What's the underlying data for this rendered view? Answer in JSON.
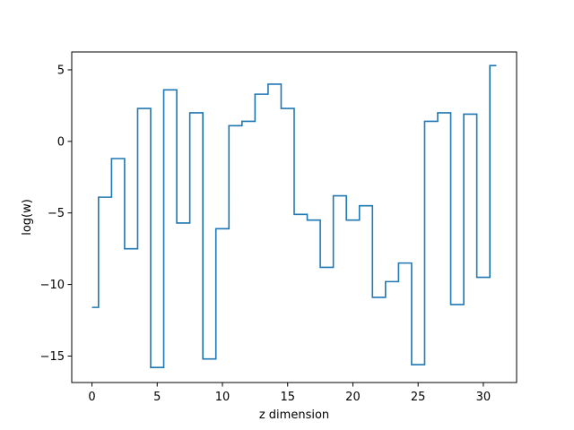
{
  "chart_data": {
    "type": "line",
    "drawstyle": "steps-mid",
    "title": "",
    "xlabel": "z dimension",
    "ylabel": "log(w)",
    "xlim": [
      -1.55,
      32.55
    ],
    "ylim": [
      -16.85,
      6.25
    ],
    "xticks": [
      0,
      5,
      10,
      15,
      20,
      25,
      30
    ],
    "yticks": [
      -15,
      -10,
      -5,
      0,
      5
    ],
    "grid": false,
    "legend": "none",
    "series": [
      {
        "color": "#1f77b4",
        "x": [
          0,
          1,
          2,
          3,
          4,
          5,
          6,
          7,
          8,
          9,
          10,
          11,
          12,
          13,
          14,
          15,
          16,
          17,
          18,
          19,
          20,
          21,
          22,
          23,
          24,
          25,
          26,
          27,
          28,
          29,
          30,
          31
        ],
        "values": [
          -11.6,
          -3.9,
          -1.2,
          -7.5,
          2.3,
          -15.8,
          3.6,
          -5.7,
          2.0,
          -15.2,
          -6.1,
          1.1,
          1.4,
          3.3,
          4.0,
          2.3,
          -5.1,
          -5.5,
          -8.8,
          -3.8,
          -5.5,
          -4.5,
          -10.9,
          -9.8,
          -8.5,
          -15.6,
          1.4,
          2.0,
          -11.4,
          1.9,
          -9.5,
          5.3
        ]
      }
    ]
  }
}
